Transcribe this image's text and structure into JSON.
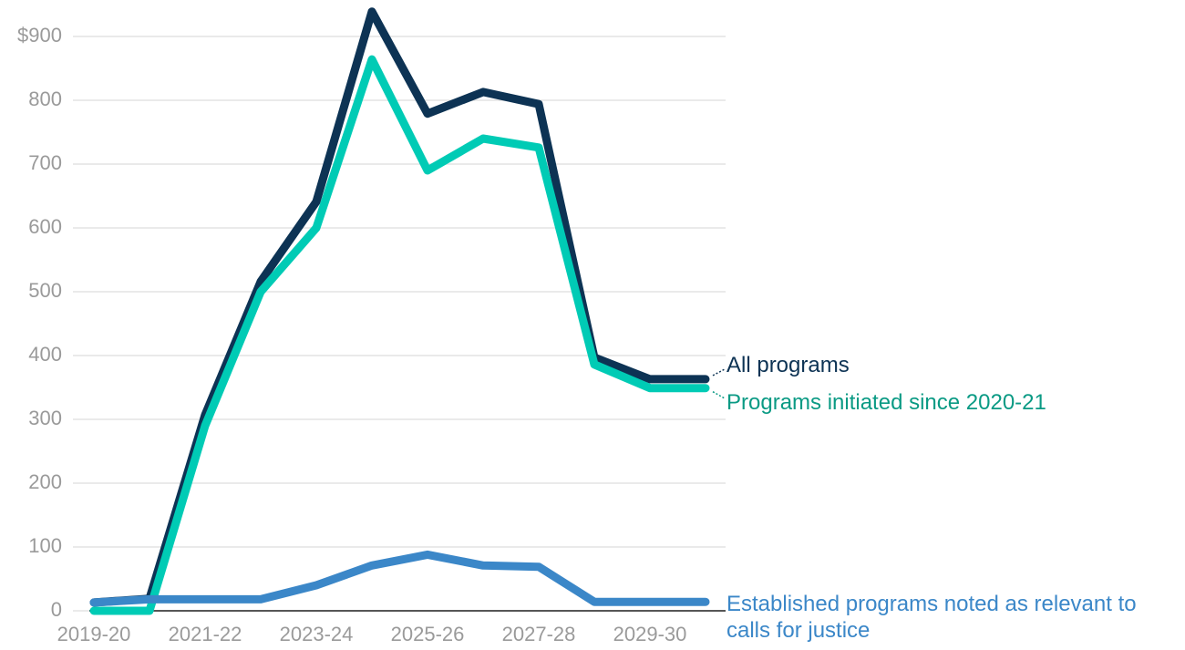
{
  "chart_data": {
    "type": "line",
    "categories": [
      "2019-20",
      null,
      "2021-22",
      null,
      "2023-24",
      null,
      "2025-26",
      null,
      "2027-28",
      null,
      "2029-30",
      null
    ],
    "series": [
      {
        "name": "All programs",
        "color": "#0d3354",
        "label_color": "#0d3354",
        "values": [
          13,
          19,
          307,
          516,
          641,
          939,
          779,
          813,
          794,
          397,
          363,
          363
        ]
      },
      {
        "name": "Programs initiated since 2020-21",
        "color": "#00cbb5",
        "label_color": "#0a9a84",
        "values": [
          0,
          0,
          290,
          500,
          600,
          864,
          690,
          740,
          726,
          386,
          349,
          349
        ]
      },
      {
        "name": "Established programs noted as relevant to calls for justice",
        "color": "#3b87c8",
        "label_color": "#3b87c8",
        "values": [
          13,
          18,
          18,
          18,
          40,
          71,
          88,
          71,
          69,
          14,
          14,
          14
        ]
      }
    ],
    "ylim": [
      0,
      900
    ],
    "yticks": [
      0,
      100,
      200,
      300,
      400,
      500,
      600,
      700,
      800,
      {
        "value": 900,
        "label": "$900"
      }
    ],
    "grid": true
  }
}
